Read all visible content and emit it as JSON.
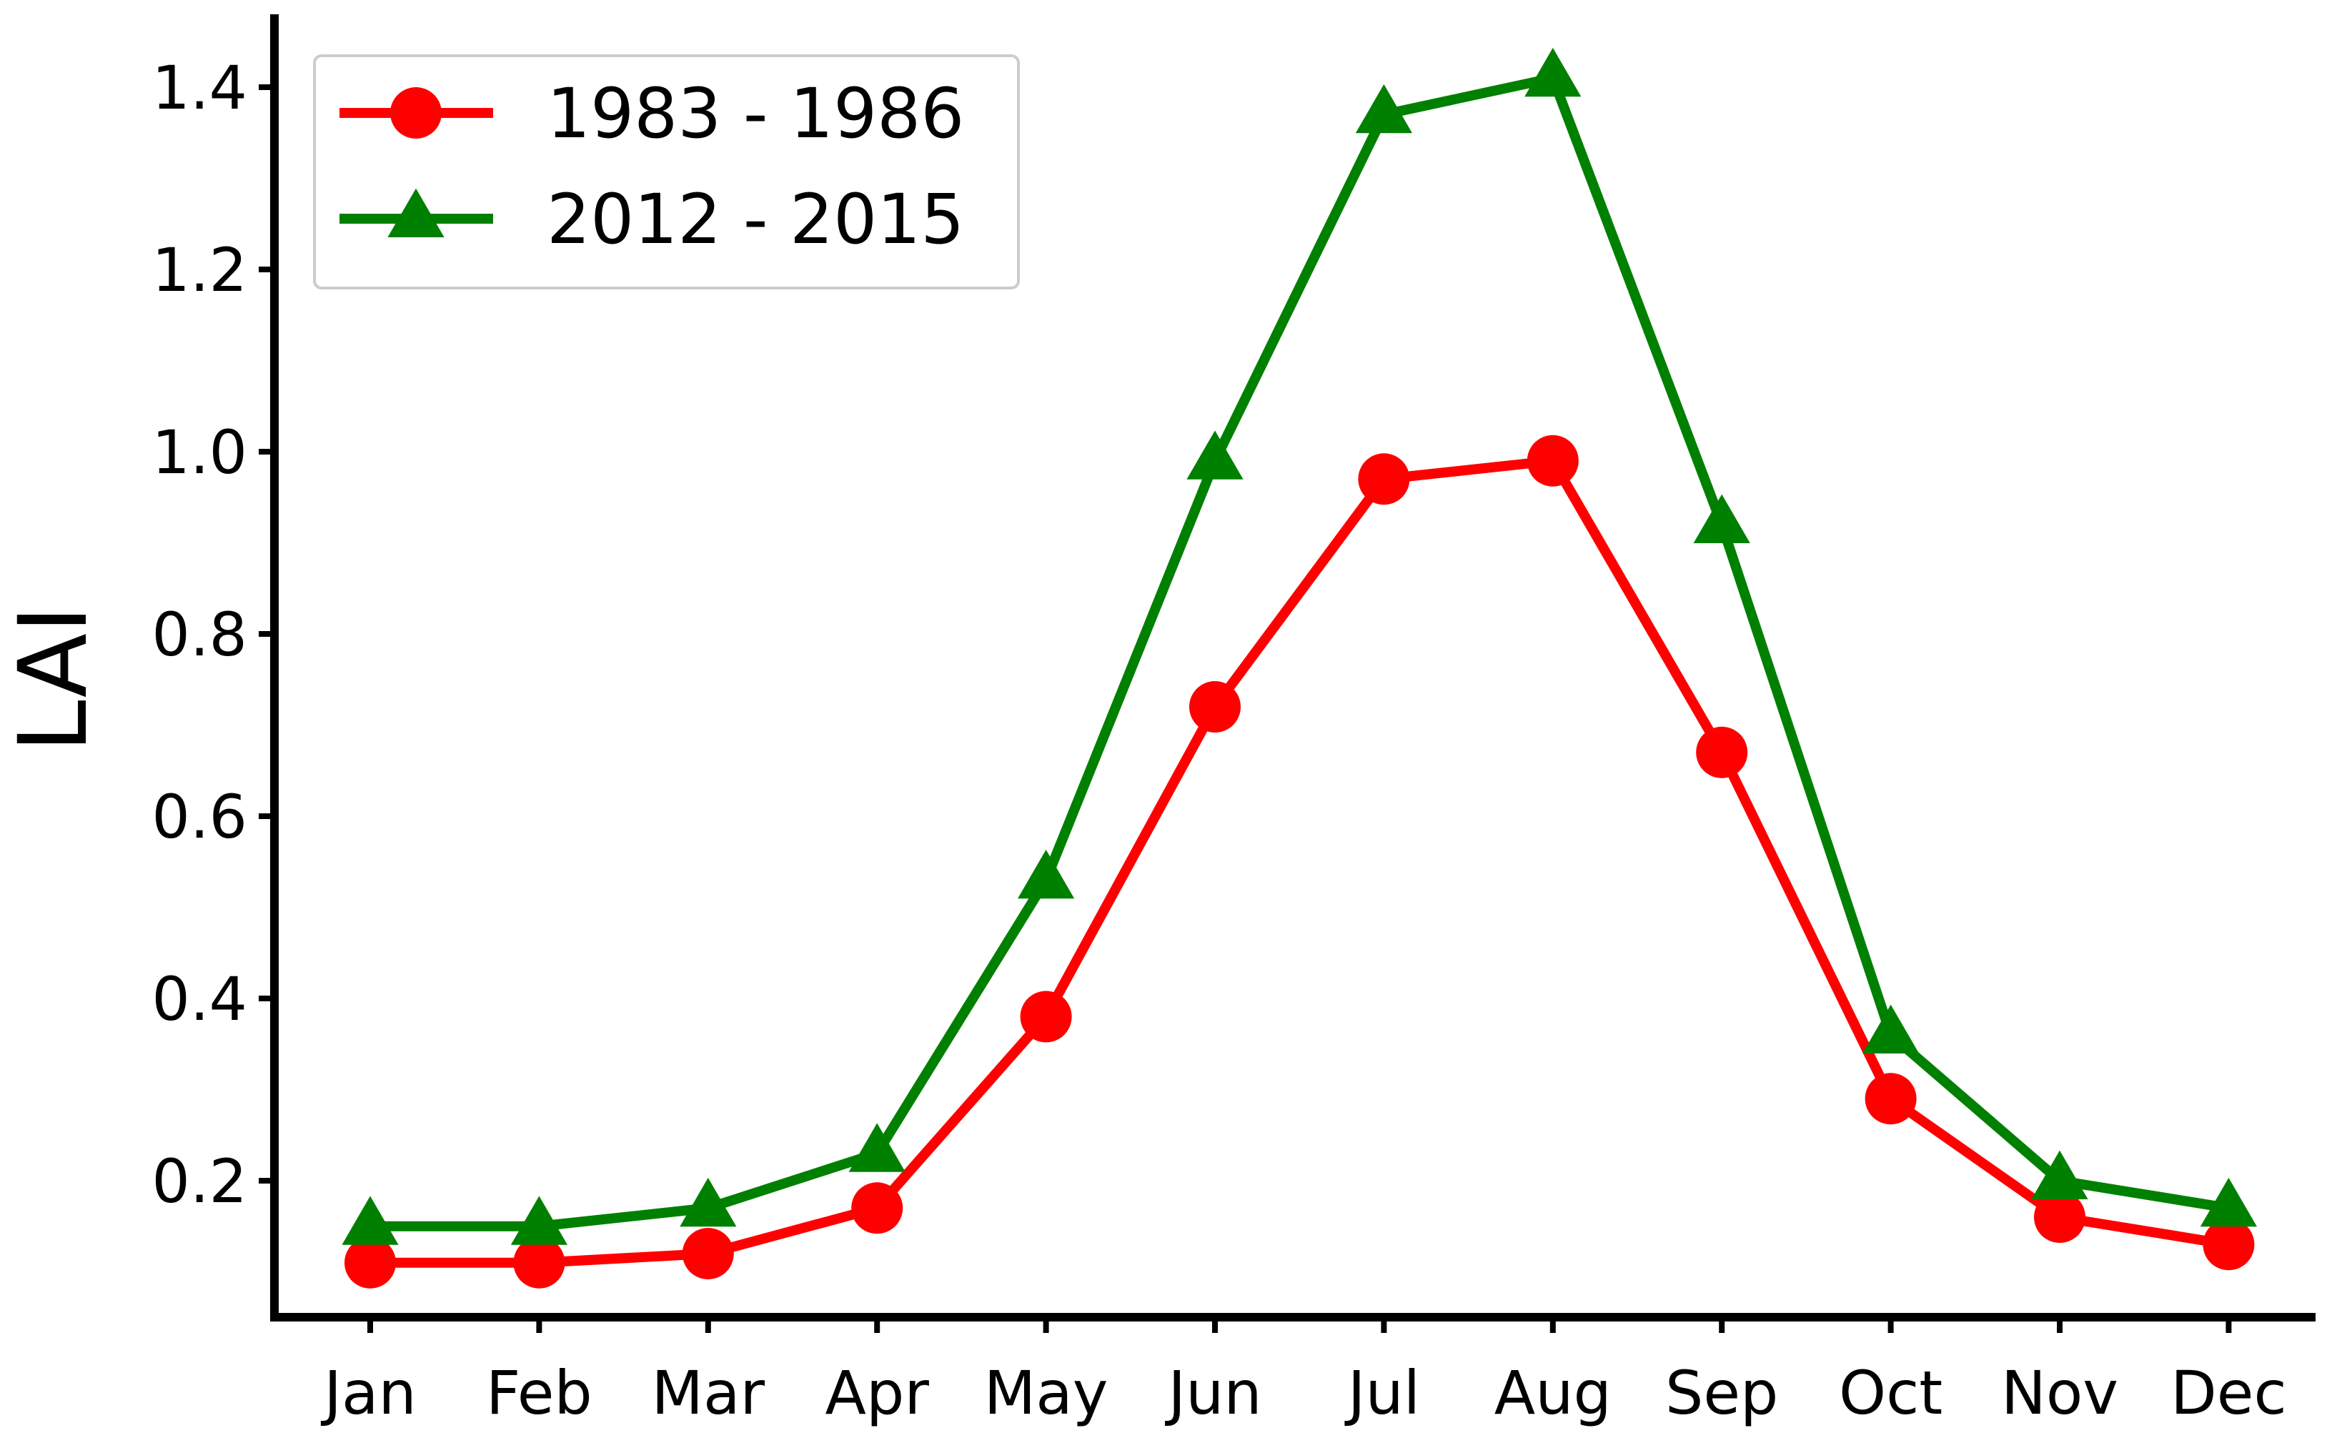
{
  "chart_data": {
    "type": "line",
    "title": "",
    "xlabel": "",
    "ylabel": "LAI",
    "categories": [
      "Jan",
      "Feb",
      "Mar",
      "Apr",
      "May",
      "Jun",
      "Jul",
      "Aug",
      "Sep",
      "Oct",
      "Nov",
      "Dec"
    ],
    "ylim": [
      0.055,
      1.48
    ],
    "yticks": [
      "0.2",
      "0.4",
      "0.6",
      "0.8",
      "1.0",
      "1.2",
      "1.4"
    ],
    "grid": false,
    "legend_position": "top-left",
    "series": [
      {
        "name": "1983 - 1986",
        "color": "#ff0000",
        "marker": "circle",
        "values": [
          0.11,
          0.11,
          0.12,
          0.17,
          0.38,
          0.72,
          0.97,
          0.99,
          0.67,
          0.29,
          0.16,
          0.13
        ]
      },
      {
        "name": "2012 - 2015",
        "color": "#008000",
        "marker": "triangle",
        "values": [
          0.15,
          0.15,
          0.17,
          0.23,
          0.53,
          0.99,
          1.37,
          1.41,
          0.92,
          0.36,
          0.2,
          0.17
        ]
      }
    ]
  }
}
